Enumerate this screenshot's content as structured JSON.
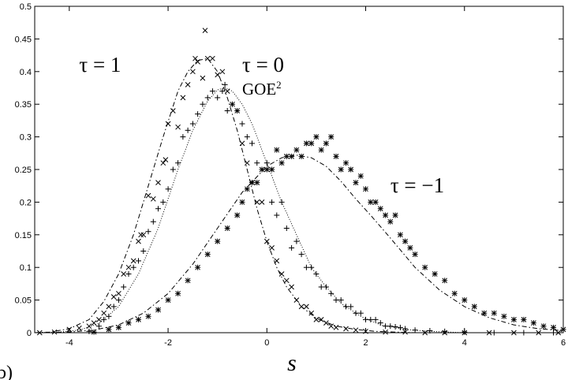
{
  "chart_data": {
    "type": "line",
    "title": "",
    "xlabel": "s",
    "ylabel": "",
    "panel_label": "b)",
    "xlim": [
      -4.7,
      6
    ],
    "ylim": [
      0,
      0.5
    ],
    "xticks": [
      -4,
      -2,
      0,
      2,
      4,
      6
    ],
    "yticks": [
      0,
      0.05,
      0.1,
      0.15,
      0.2,
      0.25,
      0.3,
      0.35,
      0.4,
      0.45,
      0.5
    ],
    "grid": false,
    "annotations": [
      {
        "text": "τ = 1",
        "x": -3.8,
        "y": 0.4
      },
      {
        "text": "τ = 0",
        "x": -0.5,
        "y": 0.4
      },
      {
        "text": "GOE",
        "sup": "2",
        "x": -0.5,
        "y": 0.365
      },
      {
        "text": "τ = −1",
        "x": 2.5,
        "y": 0.215
      }
    ],
    "series": [
      {
        "curve": "dashdot",
        "marker": "x",
        "curve_x": [
          -4.7,
          -4.4,
          -4.0,
          -3.6,
          -3.3,
          -3.0,
          -2.7,
          -2.4,
          -2.1,
          -1.8,
          -1.6,
          -1.4,
          -1.2,
          -1.0,
          -0.8,
          -0.6,
          -0.4,
          -0.2,
          0.0,
          0.2,
          0.4,
          0.7,
          1.0,
          1.4,
          1.8,
          2.2,
          2.6,
          3.0,
          3.5,
          4.0,
          5.0,
          6.0
        ],
        "curve_y": [
          0.0,
          0.001,
          0.006,
          0.02,
          0.048,
          0.09,
          0.15,
          0.225,
          0.3,
          0.37,
          0.4,
          0.417,
          0.42,
          0.4,
          0.36,
          0.31,
          0.25,
          0.19,
          0.14,
          0.1,
          0.07,
          0.04,
          0.022,
          0.01,
          0.005,
          0.002,
          0.001,
          0.0,
          0.0,
          0.0,
          0.0,
          0.0
        ],
        "points_x": [
          -4.6,
          -4.3,
          -4.0,
          -3.8,
          -3.6,
          -3.5,
          -3.4,
          -3.3,
          -3.2,
          -3.1,
          -3.0,
          -2.9,
          -2.8,
          -2.7,
          -2.6,
          -2.55,
          -2.5,
          -2.4,
          -2.3,
          -2.2,
          -2.1,
          -2.05,
          -2.0,
          -1.9,
          -1.8,
          -1.7,
          -1.6,
          -1.5,
          -1.45,
          -1.4,
          -1.3,
          -1.25,
          -1.2,
          -1.1,
          -1.0,
          -0.9,
          -0.8,
          -0.7,
          -0.6,
          -0.5,
          -0.4,
          -0.3,
          -0.2,
          -0.1,
          0.0,
          0.1,
          0.2,
          0.3,
          0.4,
          0.5,
          0.6,
          0.7,
          0.8,
          0.9,
          1.0,
          1.1,
          1.2,
          1.3,
          1.4,
          1.6,
          1.8,
          2.0,
          2.4,
          2.8,
          3.2,
          3.6,
          4.0,
          4.5,
          5.0,
          5.5,
          5.9
        ],
        "points_y": [
          0.0,
          0.001,
          0.005,
          0.007,
          0.01,
          0.015,
          0.02,
          0.03,
          0.04,
          0.055,
          0.06,
          0.09,
          0.1,
          0.11,
          0.14,
          0.15,
          0.15,
          0.21,
          0.205,
          0.23,
          0.26,
          0.265,
          0.32,
          0.34,
          0.315,
          0.36,
          0.38,
          0.4,
          0.42,
          0.415,
          0.39,
          0.463,
          0.42,
          0.42,
          0.395,
          0.4,
          0.37,
          0.35,
          0.34,
          0.29,
          0.26,
          0.23,
          0.2,
          0.2,
          0.14,
          0.13,
          0.11,
          0.09,
          0.08,
          0.07,
          0.05,
          0.04,
          0.04,
          0.03,
          0.02,
          0.02,
          0.015,
          0.01,
          0.008,
          0.006,
          0.004,
          0.002,
          0.001,
          0.001,
          0.0,
          0.0,
          0.0,
          0.0,
          0.0,
          0.0,
          0.0
        ]
      },
      {
        "curve": "dotted",
        "marker": "+",
        "curve_x": [
          -4.7,
          -4.2,
          -3.8,
          -3.4,
          -3.0,
          -2.6,
          -2.2,
          -1.8,
          -1.5,
          -1.2,
          -1.0,
          -0.85,
          -0.7,
          -0.5,
          -0.3,
          -0.1,
          0.1,
          0.3,
          0.6,
          0.9,
          1.2,
          1.5,
          1.9,
          2.3,
          2.8,
          3.3,
          4.0,
          5.0,
          6.0
        ],
        "curve_y": [
          0.0,
          0.001,
          0.004,
          0.014,
          0.04,
          0.09,
          0.16,
          0.25,
          0.31,
          0.355,
          0.372,
          0.375,
          0.37,
          0.35,
          0.32,
          0.28,
          0.24,
          0.2,
          0.15,
          0.1,
          0.07,
          0.045,
          0.025,
          0.012,
          0.005,
          0.002,
          0.0,
          0.0,
          0.0
        ],
        "points_x": [
          -3.6,
          -3.4,
          -3.3,
          -3.2,
          -3.1,
          -3.0,
          -2.9,
          -2.8,
          -2.7,
          -2.6,
          -2.5,
          -2.4,
          -2.3,
          -2.2,
          -2.1,
          -2.0,
          -1.9,
          -1.8,
          -1.7,
          -1.6,
          -1.5,
          -1.4,
          -1.3,
          -1.2,
          -1.1,
          -1.0,
          -0.9,
          -0.85,
          -0.8,
          -0.7,
          -0.6,
          -0.5,
          -0.4,
          -0.3,
          -0.2,
          -0.1,
          0.0,
          0.1,
          0.2,
          0.3,
          0.4,
          0.5,
          0.6,
          0.7,
          0.8,
          0.9,
          1.0,
          1.1,
          1.2,
          1.3,
          1.4,
          1.5,
          1.6,
          1.7,
          1.8,
          1.9,
          2.0,
          2.1,
          2.2,
          2.3,
          2.4,
          2.5,
          2.6,
          2.7,
          2.8,
          3.0,
          3.3,
          3.6,
          4.0,
          4.6,
          5.2,
          5.8
        ],
        "points_y": [
          0.002,
          0.01,
          0.02,
          0.025,
          0.04,
          0.05,
          0.07,
          0.09,
          0.1,
          0.11,
          0.125,
          0.155,
          0.17,
          0.19,
          0.2,
          0.22,
          0.25,
          0.26,
          0.3,
          0.31,
          0.32,
          0.335,
          0.35,
          0.36,
          0.37,
          0.36,
          0.37,
          0.38,
          0.34,
          0.35,
          0.34,
          0.32,
          0.3,
          0.29,
          0.26,
          0.25,
          0.26,
          0.2,
          0.18,
          0.2,
          0.16,
          0.13,
          0.14,
          0.12,
          0.1,
          0.1,
          0.09,
          0.07,
          0.07,
          0.06,
          0.05,
          0.05,
          0.04,
          0.04,
          0.03,
          0.03,
          0.02,
          0.02,
          0.02,
          0.015,
          0.01,
          0.01,
          0.009,
          0.008,
          0.006,
          0.004,
          0.003,
          0.002,
          0.001,
          0.0,
          0.0,
          0.0
        ]
      },
      {
        "curve": "dashdot",
        "marker": "*",
        "curve_x": [
          -4.7,
          -4.0,
          -3.5,
          -3.0,
          -2.5,
          -2.0,
          -1.5,
          -1.0,
          -0.5,
          0.0,
          0.3,
          0.6,
          0.9,
          1.2,
          1.5,
          1.8,
          2.1,
          2.5,
          3.0,
          3.5,
          4.0,
          4.5,
          5.0,
          5.5,
          6.0
        ],
        "curve_y": [
          0.0,
          0.001,
          0.004,
          0.012,
          0.03,
          0.06,
          0.105,
          0.16,
          0.215,
          0.255,
          0.268,
          0.272,
          0.268,
          0.255,
          0.232,
          0.205,
          0.18,
          0.145,
          0.1,
          0.065,
          0.04,
          0.023,
          0.012,
          0.006,
          0.003
        ],
        "points_x": [
          -3.5,
          -3.2,
          -3.0,
          -2.8,
          -2.6,
          -2.4,
          -2.2,
          -2.0,
          -1.8,
          -1.6,
          -1.4,
          -1.2,
          -1.0,
          -0.8,
          -0.6,
          -0.5,
          -0.4,
          -0.3,
          -0.2,
          -0.1,
          0.0,
          0.1,
          0.2,
          0.3,
          0.4,
          0.5,
          0.6,
          0.7,
          0.8,
          0.9,
          1.0,
          1.1,
          1.2,
          1.3,
          1.4,
          1.5,
          1.6,
          1.7,
          1.8,
          1.9,
          2.0,
          2.1,
          2.2,
          2.3,
          2.4,
          2.5,
          2.6,
          2.7,
          2.8,
          2.9,
          3.0,
          3.2,
          3.4,
          3.6,
          3.8,
          4.0,
          4.2,
          4.4,
          4.6,
          4.8,
          5.0,
          5.2,
          5.4,
          5.6,
          5.8,
          6.0
        ],
        "points_y": [
          0.001,
          0.005,
          0.008,
          0.015,
          0.02,
          0.025,
          0.035,
          0.05,
          0.06,
          0.08,
          0.1,
          0.12,
          0.14,
          0.16,
          0.18,
          0.2,
          0.22,
          0.23,
          0.23,
          0.25,
          0.25,
          0.25,
          0.28,
          0.26,
          0.27,
          0.27,
          0.28,
          0.27,
          0.29,
          0.29,
          0.3,
          0.28,
          0.29,
          0.3,
          0.27,
          0.25,
          0.26,
          0.25,
          0.23,
          0.24,
          0.22,
          0.2,
          0.2,
          0.19,
          0.18,
          0.17,
          0.18,
          0.15,
          0.14,
          0.13,
          0.12,
          0.1,
          0.09,
          0.08,
          0.06,
          0.05,
          0.04,
          0.03,
          0.03,
          0.025,
          0.02,
          0.02,
          0.015,
          0.01,
          0.008,
          0.005
        ]
      }
    ]
  }
}
